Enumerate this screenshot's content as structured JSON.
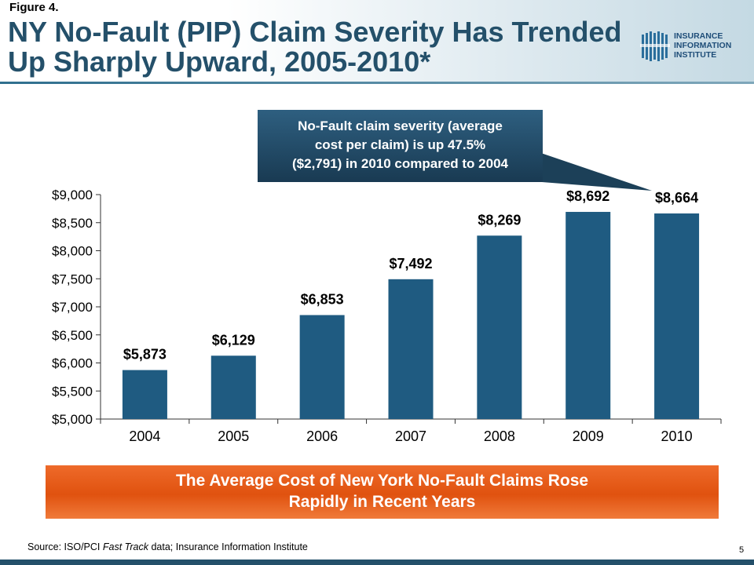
{
  "slide": {
    "figure_label": "Figure 4.",
    "title": "NY No-Fault (PIP) Claim Severity Has Trended Up Sharply Upward, 2005-2010*",
    "logo_lines": [
      "INSURANCE",
      "INFORMATION",
      "INSTITUTE"
    ],
    "callout_lines": [
      "No-Fault claim severity (average",
      "cost per claim) is up 47.5%",
      "($2,791) in 2010 compared to 2004"
    ],
    "banner_lines": [
      "The  Average Cost of New York No-Fault Claims Rose",
      "Rapidly in Recent Years"
    ],
    "source_prefix": "Source: ISO/PCI ",
    "source_italic": "Fast Track",
    "source_suffix": " data; Insurance Information Institute",
    "page_number": "5"
  },
  "colors": {
    "bar": "#1f5b81",
    "title": "#24506a",
    "callout": "#234b66",
    "banner": "#e85c1a"
  },
  "chart_data": {
    "type": "bar",
    "title": "",
    "xlabel": "",
    "ylabel": "",
    "categories": [
      "2004",
      "2005",
      "2006",
      "2007",
      "2008",
      "2009",
      "2010"
    ],
    "values": [
      5873,
      6129,
      6853,
      7492,
      8269,
      8692,
      8664
    ],
    "data_labels": [
      "$5,873",
      "$6,129",
      "$6,853",
      "$7,492",
      "$8,269",
      "$8,692",
      "$8,664"
    ],
    "ylim": [
      5000,
      9000
    ],
    "yticks": [
      5000,
      5500,
      6000,
      6500,
      7000,
      7500,
      8000,
      8500,
      9000
    ],
    "ytick_labels": [
      "$5,000",
      "$5,500",
      "$6,000",
      "$6,500",
      "$7,000",
      "$7,500",
      "$8,000",
      "$8,500",
      "$9,000"
    ],
    "grid": false,
    "legend": "none"
  }
}
